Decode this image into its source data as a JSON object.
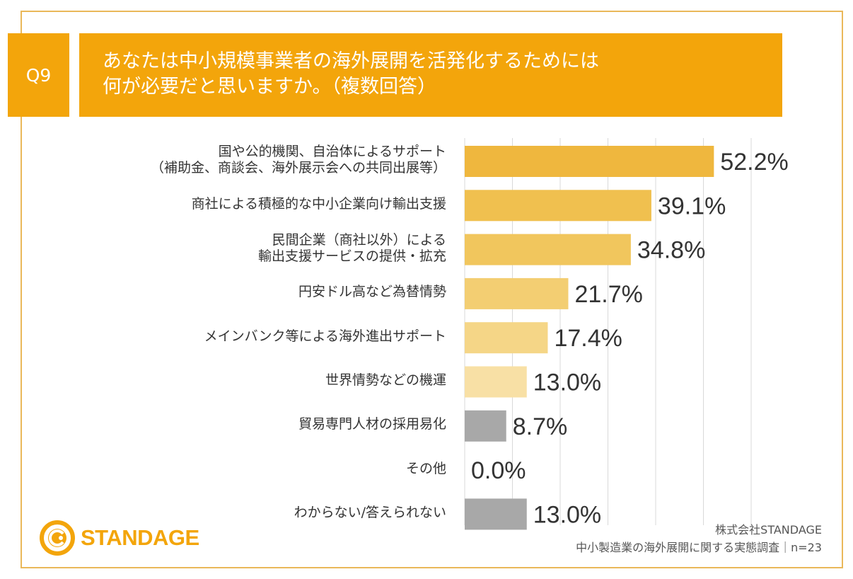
{
  "header": {
    "question_label": "Q9",
    "title_line1": "あなたは中小規模事業者の海外展開を活発化するためには",
    "title_line2": "何が必要だと思いますか。（複数回答）"
  },
  "chart_data": {
    "type": "bar",
    "orientation": "horizontal",
    "title": "あなたは中小規模事業者の海外展開を活発化するためには何が必要だと思いますか。（複数回答）",
    "categories": [
      [
        "国や公的機関、自治体によるサポート",
        "（補助金、商談会、海外展示会への共同出展等）"
      ],
      [
        "商社による積極的な中小企業向け輸出支援"
      ],
      [
        "民間企業（商社以外）による",
        "輸出支援サービスの提供・拡充"
      ],
      [
        "円安ドル高など為替情勢"
      ],
      [
        "メインバンク等による海外進出サポート"
      ],
      [
        "世界情勢などの機運"
      ],
      [
        "貿易専門人材の採用易化"
      ],
      [
        "その他"
      ],
      [
        "わからない/答えられない"
      ]
    ],
    "values": [
      52.2,
      39.1,
      34.8,
      21.7,
      17.4,
      13.0,
      8.7,
      0.0,
      13.0
    ],
    "value_labels": [
      "52.2%",
      "39.1%",
      "34.8%",
      "21.7%",
      "17.4%",
      "13.0%",
      "8.7%",
      "0.0%",
      "13.0%"
    ],
    "bar_colors": [
      "#EFB73E",
      "#F0C04F",
      "#F1C65D",
      "#F3CE72",
      "#F5D687",
      "#F8E0A5",
      "#A8A8A8",
      "#A8A8A8",
      "#A8A8A8"
    ],
    "xlim": [
      0,
      70
    ],
    "gridlines": [
      10,
      20,
      30,
      40,
      50,
      60
    ],
    "xlabel": "",
    "ylabel": "",
    "grid": true
  },
  "footer": {
    "logo_text": "STANDAGE",
    "source_line1": "株式会社STANDAGE",
    "source_line2": "中小製造業の海外展開に関する実態調査｜n=23"
  },
  "colors": {
    "accent": "#F3A50B",
    "frame": "#EAB85A",
    "gridline": "#D9D9D9"
  }
}
